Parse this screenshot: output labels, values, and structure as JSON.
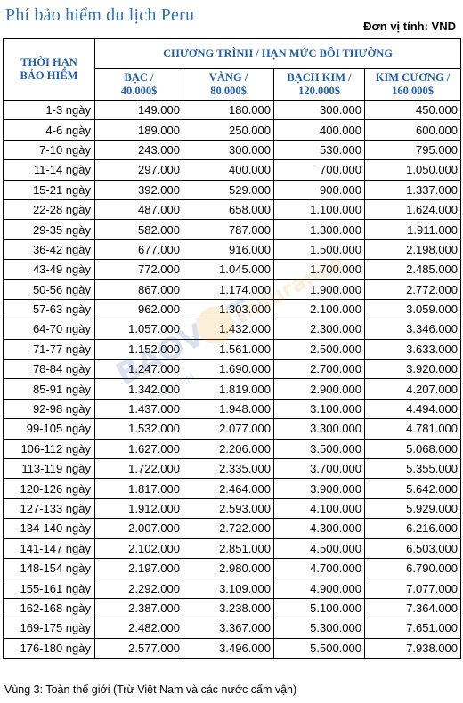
{
  "title": "Phí bảo hiểm du lịch Peru",
  "unit_label": "Đơn vị tính: VND",
  "header": {
    "duration_label": "THỜI HẠN BẢO HIỂM",
    "program_label": "CHƯƠNG TRÌNH / HẠN MỨC BỒI THƯỜNG",
    "plans": [
      {
        "name": "BẠC /",
        "limit": "40.000$"
      },
      {
        "name": "VÀNG /",
        "limit": "80.000$"
      },
      {
        "name": "BẠCH KIM /",
        "limit": "120.000$"
      },
      {
        "name": "KIM CƯƠNG /",
        "limit": "160.000$"
      }
    ]
  },
  "rows": [
    {
      "duration": "1-3 ngày",
      "values": [
        "149.000",
        "180.000",
        "300.000",
        "450.000"
      ]
    },
    {
      "duration": "4-6 ngày",
      "values": [
        "189.000",
        "250.000",
        "400.000",
        "600.000"
      ]
    },
    {
      "duration": "7-10 ngày",
      "values": [
        "243.000",
        "300.000",
        "530.000",
        "795.000"
      ]
    },
    {
      "duration": "11-14 ngày",
      "values": [
        "297.000",
        "400.000",
        "700.000",
        "1.050.000"
      ]
    },
    {
      "duration": "15-21 ngày",
      "values": [
        "392.000",
        "529.000",
        "900.000",
        "1.337.000"
      ]
    },
    {
      "duration": "22-28 ngày",
      "values": [
        "487.000",
        "658.000",
        "1.100.000",
        "1.624.000"
      ]
    },
    {
      "duration": "29-35 ngày",
      "values": [
        "582.000",
        "787.000",
        "1.300.000",
        "1.911.000"
      ]
    },
    {
      "duration": "36-42 ngày",
      "values": [
        "677.000",
        "916.000",
        "1.500.000",
        "2.198.000"
      ]
    },
    {
      "duration": "43-49 ngày",
      "values": [
        "772.000",
        "1.045.000",
        "1.700.000",
        "2.485.000"
      ]
    },
    {
      "duration": "50-56 ngày",
      "values": [
        "867.000",
        "1.174.000",
        "1.900.000",
        "2.772.000"
      ]
    },
    {
      "duration": "57-63 ngày",
      "values": [
        "962.000",
        "1.303.000",
        "2.100.000",
        "3.059.000"
      ]
    },
    {
      "duration": "64-70 ngày",
      "values": [
        "1.057.000",
        "1.432.000",
        "2.300.000",
        "3.346.000"
      ]
    },
    {
      "duration": "71-77 ngày",
      "values": [
        "1.152.000",
        "1.561.000",
        "2.500.000",
        "3.633.000"
      ]
    },
    {
      "duration": "78-84 ngày",
      "values": [
        "1.247.000",
        "1.690.000",
        "2.700.000",
        "3.920.000"
      ]
    },
    {
      "duration": "85-91 ngày",
      "values": [
        "1.342.000",
        "1.819.000",
        "2.900.000",
        "4.207.000"
      ]
    },
    {
      "duration": "92-98 ngày",
      "values": [
        "1.437.000",
        "1.948.000",
        "3.100.000",
        "4.494.000"
      ]
    },
    {
      "duration": "99-105 ngày",
      "values": [
        "1.532.000",
        "2.077.000",
        "3.300.000",
        "4.781.000"
      ]
    },
    {
      "duration": "106-112 ngày",
      "values": [
        "1.627.000",
        "2.206.000",
        "3.500.000",
        "5.068.000"
      ]
    },
    {
      "duration": "113-119 ngày",
      "values": [
        "1.722.000",
        "2.335.000",
        "3.700.000",
        "5.355.000"
      ]
    },
    {
      "duration": "120-126 ngày",
      "values": [
        "1.817.000",
        "2.464.000",
        "3.900.000",
        "5.642.000"
      ]
    },
    {
      "duration": "127-133 ngày",
      "values": [
        "1.912.000",
        "2.593.000",
        "4.100.000",
        "5.929.000"
      ]
    },
    {
      "duration": "134-140 ngày",
      "values": [
        "2.007.000",
        "2.722.000",
        "4.300.000",
        "6.216.000"
      ]
    },
    {
      "duration": "141-147 ngày",
      "values": [
        "2.102.000",
        "2.851.000",
        "4.500.000",
        "6.503.000"
      ]
    },
    {
      "duration": "148-154 ngày",
      "values": [
        "2.197.000",
        "2.980.000",
        "4.700.000",
        "6.790.000"
      ]
    },
    {
      "duration": "155-161 ngày",
      "values": [
        "2.292.000",
        "3.109.000",
        "4.900.000",
        "7.077.000"
      ]
    },
    {
      "duration": "162-168 ngày",
      "values": [
        "2.387.000",
        "3.238.000",
        "5.100.000",
        "7.364.000"
      ]
    },
    {
      "duration": "169-175 ngày",
      "values": [
        "2.482.000",
        "3.367.000",
        "5.300.000",
        "7.651.000"
      ]
    },
    {
      "duration": "176-180 ngày",
      "values": [
        "2.577.000",
        "3.496.000",
        "5.500.000",
        "7.938.000"
      ]
    }
  ],
  "footer": "Vùng 3: Toàn thế giới (Trừ Việt Nam và các nước cấm vận)",
  "watermark": {
    "brand": "BAOVIET",
    "sub": "Insurance",
    "tagline": "BAO HIEM"
  },
  "colors": {
    "title": "#2e6fb5",
    "header_text": "#1f5fa8",
    "border": "#000000"
  }
}
